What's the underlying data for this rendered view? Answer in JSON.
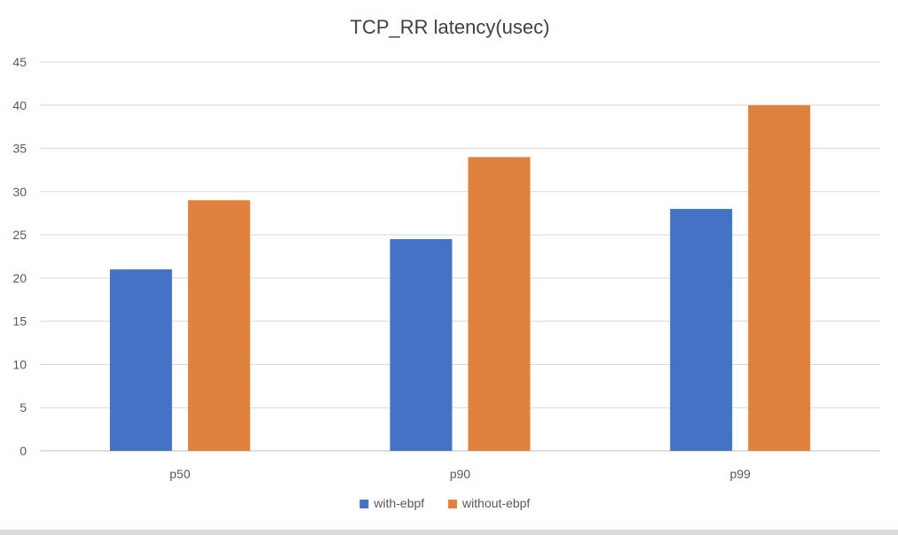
{
  "chart_data": {
    "type": "bar",
    "title": "TCP_RR latency(usec)",
    "xlabel": "",
    "ylabel": "",
    "categories": [
      "p50",
      "p90",
      "p99"
    ],
    "series": [
      {
        "name": "with-ebpf",
        "color": "#4472C4",
        "values": [
          21,
          24.5,
          28
        ]
      },
      {
        "name": "without-ebpf",
        "color": "#E0823F",
        "values": [
          29,
          34,
          40
        ]
      }
    ],
    "ylim": [
      0,
      45
    ],
    "yticks": [
      "0",
      "5",
      "10",
      "15",
      "20",
      "25",
      "30",
      "35",
      "40",
      "45"
    ],
    "grid": true,
    "legend": "bottom"
  }
}
